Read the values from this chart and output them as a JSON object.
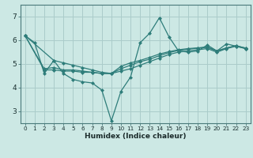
{
  "xlabel": "Humidex (Indice chaleur)",
  "xlim": [
    -0.5,
    23.5
  ],
  "ylim": [
    2.5,
    7.5
  ],
  "yticks": [
    3,
    4,
    5,
    6,
    7
  ],
  "xticks": [
    0,
    1,
    2,
    3,
    4,
    5,
    6,
    7,
    8,
    9,
    10,
    11,
    12,
    13,
    14,
    15,
    16,
    17,
    18,
    19,
    20,
    21,
    22,
    23
  ],
  "bg_color": "#cce8e4",
  "grid_color": "#aaccca",
  "line_color": "#2e7d7a",
  "lines": [
    {
      "x": [
        0,
        1,
        2,
        3,
        4,
        5,
        6,
        7,
        8,
        9,
        10,
        11,
        12,
        13,
        14,
        15,
        16,
        17,
        18,
        19,
        20,
        21,
        22,
        23
      ],
      "y": [
        6.2,
        5.9,
        4.6,
        5.15,
        4.6,
        4.35,
        4.25,
        4.2,
        3.9,
        2.6,
        3.85,
        4.45,
        5.9,
        6.3,
        6.95,
        6.15,
        5.55,
        5.5,
        5.55,
        5.8,
        5.55,
        5.85,
        5.75,
        5.65
      ]
    },
    {
      "x": [
        0,
        2,
        3,
        4,
        5,
        6,
        7,
        8,
        9,
        10,
        11,
        12,
        13,
        14,
        15,
        16,
        17,
        18,
        19,
        20,
        21,
        22,
        23
      ],
      "y": [
        6.2,
        4.75,
        4.75,
        4.7,
        4.7,
        4.65,
        4.65,
        4.6,
        4.6,
        4.7,
        4.8,
        4.95,
        5.1,
        5.25,
        5.4,
        5.5,
        5.55,
        5.6,
        5.65,
        5.5,
        5.65,
        5.75,
        5.65
      ]
    },
    {
      "x": [
        0,
        2,
        3,
        4,
        5,
        6,
        7,
        8,
        9,
        10,
        11,
        12,
        13,
        14,
        15,
        16,
        17,
        18,
        19,
        20,
        21,
        22,
        23
      ],
      "y": [
        6.2,
        4.8,
        4.85,
        4.75,
        4.75,
        4.7,
        4.65,
        4.6,
        4.6,
        4.8,
        4.95,
        5.1,
        5.2,
        5.35,
        5.48,
        5.57,
        5.62,
        5.67,
        5.7,
        5.55,
        5.67,
        5.77,
        5.67
      ]
    },
    {
      "x": [
        0,
        3,
        4,
        5,
        6,
        7,
        8,
        9,
        10,
        11,
        12,
        13,
        14,
        15,
        16,
        17,
        18,
        19,
        20,
        21,
        22,
        23
      ],
      "y": [
        6.2,
        5.15,
        5.05,
        4.95,
        4.85,
        4.75,
        4.65,
        4.6,
        4.9,
        5.05,
        5.15,
        5.28,
        5.42,
        5.52,
        5.6,
        5.65,
        5.68,
        5.72,
        5.55,
        5.68,
        5.77,
        5.67
      ]
    }
  ]
}
